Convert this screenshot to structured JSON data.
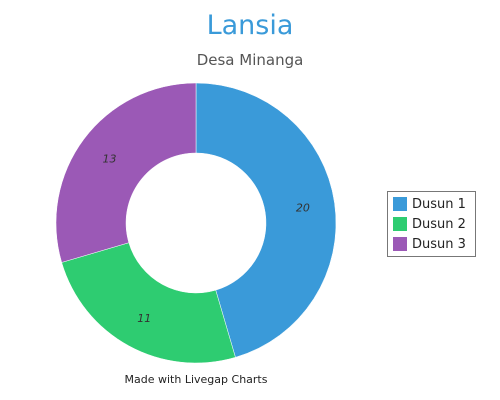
{
  "chart_data": {
    "type": "pie",
    "variant": "donut",
    "title": "Lansia",
    "subtitle": "Desa Minanga",
    "categories": [
      "Dusun 1",
      "Dusun 2",
      "Dusun 3"
    ],
    "values": [
      20,
      11,
      13
    ],
    "colors": [
      "#3a9ad9",
      "#2ecc71",
      "#9b59b6"
    ],
    "legend": "right",
    "data_labels": true
  },
  "footer": "Made with Livegap Charts"
}
